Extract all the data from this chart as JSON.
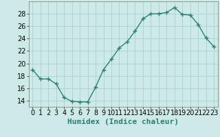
{
  "x": [
    0,
    1,
    2,
    3,
    4,
    5,
    6,
    7,
    8,
    9,
    10,
    11,
    12,
    13,
    14,
    15,
    16,
    17,
    18,
    19,
    20,
    21,
    22,
    23
  ],
  "y": [
    19,
    17.5,
    17.5,
    16.7,
    14.5,
    13.9,
    13.8,
    13.8,
    16.2,
    19.0,
    20.7,
    22.5,
    23.5,
    25.2,
    27.2,
    28.0,
    28.0,
    28.2,
    29.0,
    27.9,
    27.8,
    26.3,
    24.1,
    22.7
  ],
  "line_color": "#2e7d6e",
  "marker": "+",
  "marker_size": 4,
  "marker_lw": 1.0,
  "bg_color": "#ceeae8",
  "grid_color": "#aacfcf",
  "xlabel": "Humidex (Indice chaleur)",
  "xlabel_fontsize": 8,
  "tick_fontsize": 7,
  "ylim": [
    13,
    30
  ],
  "yticks": [
    14,
    16,
    18,
    20,
    22,
    24,
    26,
    28
  ],
  "xlim": [
    -0.5,
    23.5
  ],
  "xticks": [
    0,
    1,
    2,
    3,
    4,
    5,
    6,
    7,
    8,
    9,
    10,
    11,
    12,
    13,
    14,
    15,
    16,
    17,
    18,
    19,
    20,
    21,
    22,
    23
  ]
}
